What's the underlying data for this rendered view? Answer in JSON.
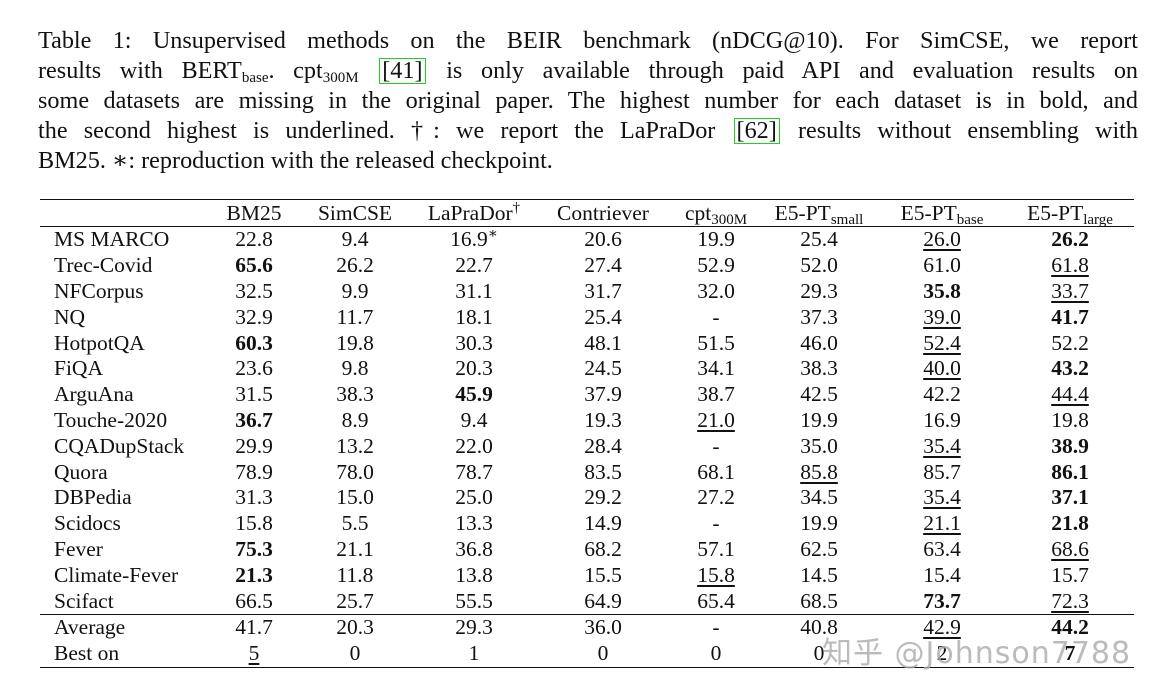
{
  "caption": {
    "line1": "Table 1: Unsupervised methods on the BEIR benchmark (nDCG@10). For SimCSE, we report",
    "line2_a": "results with BERT",
    "line2_sub": "base",
    "line2_b": ". cpt",
    "line2_sub2": "300M",
    "line2_ref": "[41]",
    "line2_c": "is only available through paid API and evaluation results on",
    "line3": "some datasets are missing in the original paper. The highest number for each dataset is in bold, and",
    "line4_a": "the second highest is underlined. †: we report the LaPraDor",
    "line4_ref": "[62]",
    "line4_b": "results without ensembling with",
    "line5": "BM25. ∗: reproduction with the released checkpoint."
  },
  "headers": [
    {
      "text": "",
      "sub": "",
      "sup": ""
    },
    {
      "text": "BM25",
      "sub": "",
      "sup": ""
    },
    {
      "text": "SimCSE",
      "sub": "",
      "sup": ""
    },
    {
      "text": "LaPraDor",
      "sub": "",
      "sup": "†"
    },
    {
      "text": "Contriever",
      "sub": "",
      "sup": ""
    },
    {
      "text": "cpt",
      "sub": "300M",
      "sup": ""
    },
    {
      "text": "E5-PT",
      "sub": "small",
      "sup": ""
    },
    {
      "text": "E5-PT",
      "sub": "base",
      "sup": ""
    },
    {
      "text": "E5-PT",
      "sub": "large",
      "sup": ""
    }
  ],
  "rows": [
    {
      "name": "MS MARCO",
      "cells": [
        {
          "v": "22.8"
        },
        {
          "v": "9.4"
        },
        {
          "v": "16.9",
          "sup": "∗"
        },
        {
          "v": "20.6"
        },
        {
          "v": "19.9"
        },
        {
          "v": "25.4"
        },
        {
          "v": "26.0",
          "u": true
        },
        {
          "v": "26.2",
          "b": true
        }
      ]
    },
    {
      "name": "Trec-Covid",
      "cells": [
        {
          "v": "65.6",
          "b": true
        },
        {
          "v": "26.2"
        },
        {
          "v": "22.7"
        },
        {
          "v": "27.4"
        },
        {
          "v": "52.9"
        },
        {
          "v": "52.0"
        },
        {
          "v": "61.0"
        },
        {
          "v": "61.8",
          "u": true
        }
      ]
    },
    {
      "name": "NFCorpus",
      "cells": [
        {
          "v": "32.5"
        },
        {
          "v": "9.9"
        },
        {
          "v": "31.1"
        },
        {
          "v": "31.7"
        },
        {
          "v": "32.0"
        },
        {
          "v": "29.3"
        },
        {
          "v": "35.8",
          "b": true
        },
        {
          "v": "33.7",
          "u": true
        }
      ]
    },
    {
      "name": "NQ",
      "cells": [
        {
          "v": "32.9"
        },
        {
          "v": "11.7"
        },
        {
          "v": "18.1"
        },
        {
          "v": "25.4"
        },
        {
          "v": "-"
        },
        {
          "v": "37.3"
        },
        {
          "v": "39.0",
          "u": true
        },
        {
          "v": "41.7",
          "b": true
        }
      ]
    },
    {
      "name": "HotpotQA",
      "cells": [
        {
          "v": "60.3",
          "b": true
        },
        {
          "v": "19.8"
        },
        {
          "v": "30.3"
        },
        {
          "v": "48.1"
        },
        {
          "v": "51.5"
        },
        {
          "v": "46.0"
        },
        {
          "v": "52.4",
          "u": true
        },
        {
          "v": "52.2"
        }
      ]
    },
    {
      "name": "FiQA",
      "cells": [
        {
          "v": "23.6"
        },
        {
          "v": "9.8"
        },
        {
          "v": "20.3"
        },
        {
          "v": "24.5"
        },
        {
          "v": "34.1"
        },
        {
          "v": "38.3"
        },
        {
          "v": "40.0",
          "u": true
        },
        {
          "v": "43.2",
          "b": true
        }
      ]
    },
    {
      "name": "ArguAna",
      "cells": [
        {
          "v": "31.5"
        },
        {
          "v": "38.3"
        },
        {
          "v": "45.9",
          "b": true
        },
        {
          "v": "37.9"
        },
        {
          "v": "38.7"
        },
        {
          "v": "42.5"
        },
        {
          "v": "42.2"
        },
        {
          "v": "44.4",
          "u": true
        }
      ]
    },
    {
      "name": "Touche-2020",
      "cells": [
        {
          "v": "36.7",
          "b": true
        },
        {
          "v": "8.9"
        },
        {
          "v": "9.4"
        },
        {
          "v": "19.3"
        },
        {
          "v": "21.0",
          "u": true
        },
        {
          "v": "19.9"
        },
        {
          "v": "16.9"
        },
        {
          "v": "19.8"
        }
      ]
    },
    {
      "name": "CQADupStack",
      "cells": [
        {
          "v": "29.9"
        },
        {
          "v": "13.2"
        },
        {
          "v": "22.0"
        },
        {
          "v": "28.4"
        },
        {
          "v": "-"
        },
        {
          "v": "35.0"
        },
        {
          "v": "35.4",
          "u": true
        },
        {
          "v": "38.9",
          "b": true
        }
      ]
    },
    {
      "name": "Quora",
      "cells": [
        {
          "v": "78.9"
        },
        {
          "v": "78.0"
        },
        {
          "v": "78.7"
        },
        {
          "v": "83.5"
        },
        {
          "v": "68.1"
        },
        {
          "v": "85.8",
          "u": true
        },
        {
          "v": "85.7"
        },
        {
          "v": "86.1",
          "b": true
        }
      ]
    },
    {
      "name": "DBPedia",
      "cells": [
        {
          "v": "31.3"
        },
        {
          "v": "15.0"
        },
        {
          "v": "25.0"
        },
        {
          "v": "29.2"
        },
        {
          "v": "27.2"
        },
        {
          "v": "34.5"
        },
        {
          "v": "35.4",
          "u": true
        },
        {
          "v": "37.1",
          "b": true
        }
      ]
    },
    {
      "name": "Scidocs",
      "cells": [
        {
          "v": "15.8"
        },
        {
          "v": "5.5"
        },
        {
          "v": "13.3"
        },
        {
          "v": "14.9"
        },
        {
          "v": "-"
        },
        {
          "v": "19.9"
        },
        {
          "v": "21.1",
          "u": true
        },
        {
          "v": "21.8",
          "b": true
        }
      ]
    },
    {
      "name": "Fever",
      "cells": [
        {
          "v": "75.3",
          "b": true
        },
        {
          "v": "21.1"
        },
        {
          "v": "36.8"
        },
        {
          "v": "68.2"
        },
        {
          "v": "57.1"
        },
        {
          "v": "62.5"
        },
        {
          "v": "63.4"
        },
        {
          "v": "68.6",
          "u": true
        }
      ]
    },
    {
      "name": "Climate-Fever",
      "cells": [
        {
          "v": "21.3",
          "b": true
        },
        {
          "v": "11.8"
        },
        {
          "v": "13.8"
        },
        {
          "v": "15.5"
        },
        {
          "v": "15.8",
          "u": true
        },
        {
          "v": "14.5"
        },
        {
          "v": "15.4"
        },
        {
          "v": "15.7"
        }
      ]
    },
    {
      "name": "Scifact",
      "cells": [
        {
          "v": "66.5"
        },
        {
          "v": "25.7"
        },
        {
          "v": "55.5"
        },
        {
          "v": "64.9"
        },
        {
          "v": "65.4"
        },
        {
          "v": "68.5"
        },
        {
          "v": "73.7",
          "b": true
        },
        {
          "v": "72.3",
          "u": true
        }
      ]
    }
  ],
  "summary": [
    {
      "name": "Average",
      "cells": [
        {
          "v": "41.7"
        },
        {
          "v": "20.3"
        },
        {
          "v": "29.3"
        },
        {
          "v": "36.0"
        },
        {
          "v": "-"
        },
        {
          "v": "40.8"
        },
        {
          "v": "42.9",
          "u": true
        },
        {
          "v": "44.2",
          "b": true
        }
      ]
    },
    {
      "name": "Best on",
      "cells": [
        {
          "v": "5",
          "u": true
        },
        {
          "v": "0"
        },
        {
          "v": "1"
        },
        {
          "v": "0"
        },
        {
          "v": "0"
        },
        {
          "v": "0"
        },
        {
          "v": "2"
        },
        {
          "v": "7",
          "b": true
        }
      ]
    }
  ],
  "watermark": "知乎 @Johnson7788"
}
